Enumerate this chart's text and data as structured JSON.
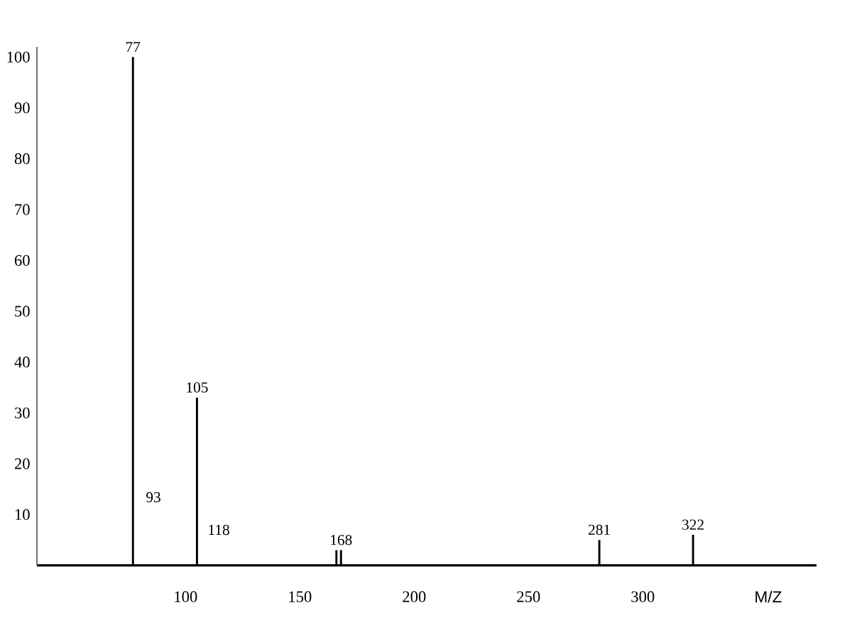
{
  "chart_data": {
    "type": "bar",
    "xlabel": "M/Z",
    "x": [
      77,
      105,
      166,
      168,
      281,
      322
    ],
    "values": [
      100,
      33,
      3,
      3,
      5,
      6
    ],
    "color": "#000000",
    "xlim": [
      35,
      376
    ],
    "ylim": [
      0,
      102
    ],
    "xticks": [
      100,
      150,
      200,
      250,
      300
    ],
    "yticks": [
      10,
      20,
      30,
      40,
      50,
      60,
      70,
      80,
      90,
      100
    ],
    "annotations": [
      {
        "text": "77",
        "x": 77,
        "y": 100
      },
      "93",
      {
        "text": "105",
        "x": 105,
        "y": 33
      },
      "118",
      {
        "text": "168",
        "x": 168,
        "y": 3
      },
      {
        "text": "281",
        "x": 281,
        "y": 5
      },
      {
        "text": "322",
        "x": 322,
        "y": 6
      }
    ]
  }
}
